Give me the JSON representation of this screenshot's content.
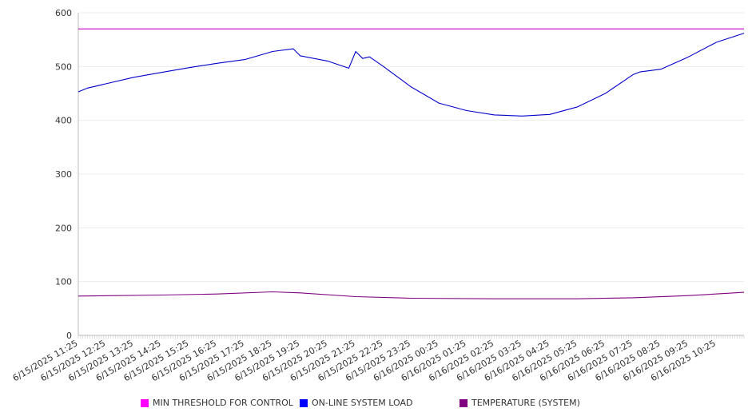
{
  "chart_data": {
    "type": "line",
    "title": "",
    "xlabel": "",
    "ylabel": "",
    "ylim": [
      0,
      600
    ],
    "yticks": [
      0,
      100,
      200,
      300,
      400,
      500,
      600
    ],
    "grid": true,
    "legend_position": "bottom",
    "x_tick_labels": [
      "6/15/2025 11:25",
      "6/15/2025 12:25",
      "6/15/2025 13:25",
      "6/15/2025 14:25",
      "6/15/2025 15:25",
      "6/15/2025 16:25",
      "6/15/2025 17:25",
      "6/15/2025 18:25",
      "6/15/2025 19:25",
      "6/15/2025 20:25",
      "6/15/2025 21:25",
      "6/15/2025 22:25",
      "6/15/2025 23:25",
      "6/16/2025 00:25",
      "6/16/2025 01:25",
      "6/16/2025 02:25",
      "6/16/2025 03:25",
      "6/16/2025 04:25",
      "6/16/2025 05:25",
      "6/16/2025 06:25",
      "6/16/2025 07:25",
      "6/16/2025 08:25",
      "6/16/2025 09:25",
      "6/16/2025 10:25"
    ],
    "x_start": "6/15/2025 11:25",
    "x_end": "6/16/2025 11:25",
    "series": [
      {
        "name": "MIN THRESHOLD FOR CONTROL",
        "color": "#CC00CC",
        "x": [
          "6/15/2025 11:25",
          "6/16/2025 11:25"
        ],
        "y": [
          570,
          570
        ]
      },
      {
        "name": "ON-LINE SYSTEM LOAD",
        "color": "#0000CC",
        "x": [
          "6/15/2025 11:25",
          "6/15/2025 11:45",
          "6/15/2025 12:25",
          "6/15/2025 13:25",
          "6/15/2025 14:25",
          "6/15/2025 15:25",
          "6/15/2025 16:25",
          "6/15/2025 17:25",
          "6/15/2025 18:25",
          "6/15/2025 19:10",
          "6/15/2025 19:25",
          "6/15/2025 20:25",
          "6/15/2025 21:10",
          "6/15/2025 21:25",
          "6/15/2025 21:40",
          "6/15/2025 21:55",
          "6/15/2025 22:25",
          "6/15/2025 23:25",
          "6/16/2025 00:25",
          "6/16/2025 01:25",
          "6/16/2025 02:25",
          "6/16/2025 03:25",
          "6/16/2025 04:25",
          "6/16/2025 05:25",
          "6/16/2025 06:25",
          "6/16/2025 07:25",
          "6/16/2025 07:40",
          "6/16/2025 08:25",
          "6/16/2025 09:25",
          "6/16/2025 10:25",
          "6/16/2025 11:25"
        ],
        "y": [
          453,
          460,
          468,
          480,
          489,
          498,
          506,
          513,
          528,
          533,
          520,
          510,
          497,
          528,
          515,
          518,
          500,
          462,
          432,
          418,
          410,
          408,
          411,
          425,
          450,
          485,
          490,
          495,
          518,
          545,
          562
        ]
      },
      {
        "name": "TEMPERATURE (SYSTEM)",
        "color": "#800080",
        "x": [
          "6/15/2025 11:25",
          "6/15/2025 14:25",
          "6/15/2025 16:25",
          "6/15/2025 18:25",
          "6/15/2025 19:25",
          "6/15/2025 21:25",
          "6/15/2025 23:25",
          "6/16/2025 02:25",
          "6/16/2025 05:25",
          "6/16/2025 07:25",
          "6/16/2025 09:25",
          "6/16/2025 11:25"
        ],
        "y": [
          73,
          75,
          77,
          81,
          79,
          72,
          69,
          68,
          68,
          70,
          74,
          80
        ]
      }
    ]
  }
}
